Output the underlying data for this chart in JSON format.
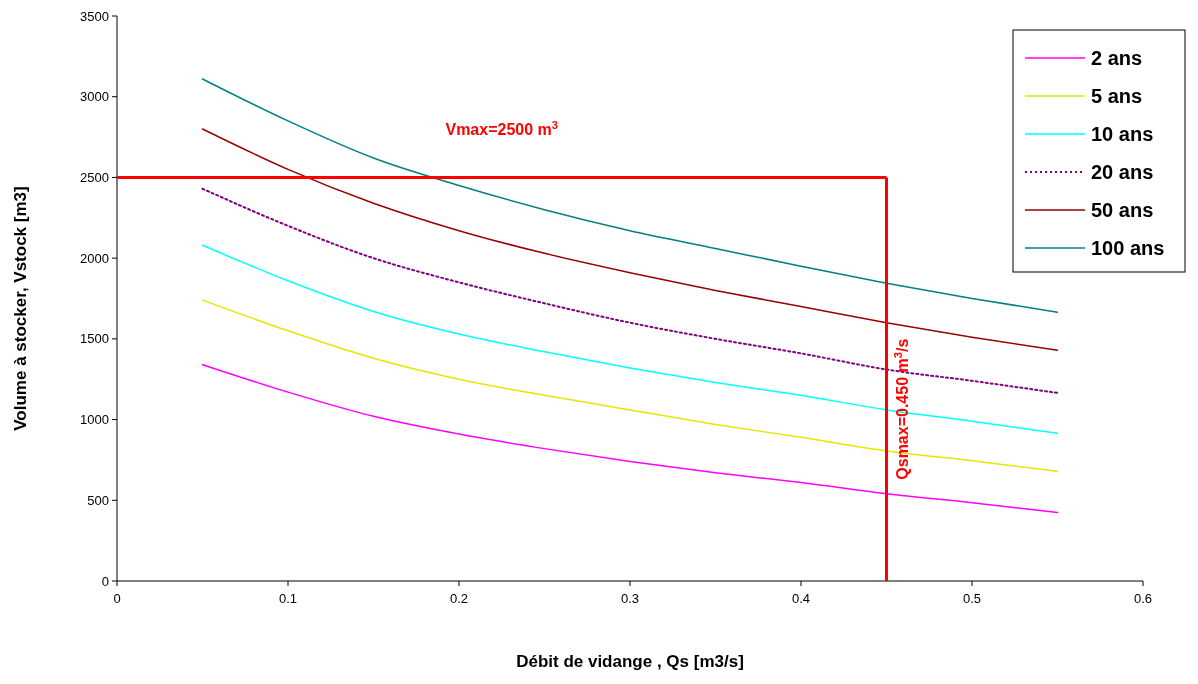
{
  "chart_data": {
    "type": "line",
    "xlabel": "Débit de vidange , Qs [m3/s]",
    "ylabel": "Volume à stocker, Vstock [m3]",
    "x": [
      0.05,
      0.1,
      0.15,
      0.2,
      0.25,
      0.3,
      0.35,
      0.4,
      0.45,
      0.5,
      0.55
    ],
    "series": [
      {
        "name": "2 ans",
        "color": "#ff00ff",
        "values": [
          1340,
          1170,
          1020,
          910,
          820,
          740,
          670,
          610,
          540,
          485,
          425
        ]
      },
      {
        "name": "5 ans",
        "color": "#e6e600",
        "values": [
          1740,
          1550,
          1380,
          1250,
          1150,
          1060,
          970,
          890,
          805,
          745,
          680
        ]
      },
      {
        "name": "10 ans",
        "color": "#00ffff",
        "values": [
          2080,
          1860,
          1670,
          1530,
          1420,
          1320,
          1230,
          1150,
          1060,
          990,
          915
        ]
      },
      {
        "name": "20 ans",
        "color": "#800080",
        "line_style": "dotted",
        "values": [
          2430,
          2200,
          2000,
          1850,
          1720,
          1600,
          1500,
          1410,
          1310,
          1240,
          1165
        ]
      },
      {
        "name": "50 ans",
        "color": "#990000",
        "values": [
          2800,
          2550,
          2340,
          2170,
          2030,
          1910,
          1800,
          1700,
          1600,
          1510,
          1430
        ]
      },
      {
        "name": "100 ans",
        "color": "#008080",
        "values": [
          3110,
          2850,
          2620,
          2450,
          2300,
          2170,
          2060,
          1950,
          1845,
          1750,
          1665
        ]
      }
    ],
    "xlim": [
      0,
      0.6
    ],
    "xticks": [
      0,
      0.1,
      0.2,
      0.3,
      0.4,
      0.5,
      0.6
    ],
    "ylim": [
      0,
      3500
    ],
    "yticks": [
      0,
      500,
      1000,
      1500,
      2000,
      2500,
      3000,
      3500
    ],
    "ref_lines": [
      {
        "axis": "y",
        "value": 2500,
        "label": "Vmax=2500 m$^{3}$",
        "color": "#ff0000"
      },
      {
        "axis": "x",
        "value": 0.45,
        "label": "Qsmax=0.450 m$^{3}$/s",
        "color": "#ff0000"
      }
    ],
    "legend": "right",
    "grid": false,
    "marker": "none",
    "line_style": "solid"
  }
}
